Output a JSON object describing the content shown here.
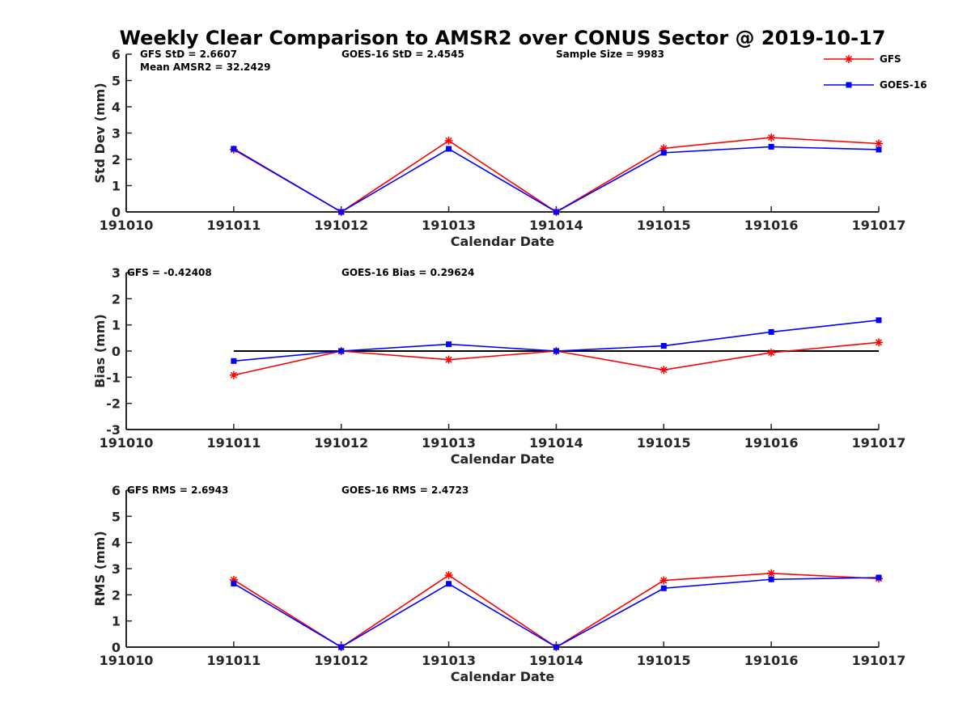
{
  "title": "Weekly Clear Comparison to AMSR2 over CONUS Sector @ 2019-10-17",
  "legend": [
    {
      "label": "GFS",
      "color": "#ff0000",
      "marker": "star"
    },
    {
      "label": "GOES-16",
      "color": "#0000ff",
      "marker": "square"
    }
  ],
  "chart_data": [
    {
      "type": "line",
      "ylabel": "Std Dev (mm)",
      "xlabel": "Calendar Date",
      "x_ticks": [
        "191010",
        "191011",
        "191012",
        "191013",
        "191014",
        "191015",
        "191016",
        "191017"
      ],
      "x": [
        "191011",
        "191012",
        "191013",
        "191014",
        "191015",
        "191016",
        "191017"
      ],
      "ylim": [
        0,
        6
      ],
      "y_ticks": [
        "0",
        "1",
        "2",
        "3",
        "4",
        "5",
        "6"
      ],
      "series": [
        {
          "name": "GFS",
          "color": "#ff0000",
          "marker": "star",
          "values": [
            2.37,
            0.0,
            2.71,
            0.0,
            2.42,
            2.83,
            2.6
          ]
        },
        {
          "name": "GOES-16",
          "color": "#0000ff",
          "marker": "square",
          "values": [
            2.4,
            0.0,
            2.4,
            0.0,
            2.25,
            2.48,
            2.37
          ]
        }
      ],
      "annotations": [
        "GFS StD = 2.6607",
        "Mean AMSR2 = 32.2429",
        "GOES-16 StD = 2.4545",
        "Sample Size = 9983"
      ]
    },
    {
      "type": "line",
      "ylabel": "Bias (mm)",
      "xlabel": "Calendar Date",
      "x_ticks": [
        "191010",
        "191011",
        "191012",
        "191013",
        "191014",
        "191015",
        "191016",
        "191017"
      ],
      "x": [
        "191011",
        "191012",
        "191013",
        "191014",
        "191015",
        "191016",
        "191017"
      ],
      "ylim": [
        -3,
        3
      ],
      "y_ticks": [
        "-3",
        "-2",
        "-1",
        "0",
        "1",
        "2",
        "3"
      ],
      "reference_line": 0,
      "series": [
        {
          "name": "GFS",
          "color": "#ff0000",
          "marker": "star",
          "values": [
            -0.92,
            0.0,
            -0.33,
            0.0,
            -0.72,
            -0.06,
            0.33
          ]
        },
        {
          "name": "GOES-16",
          "color": "#0000ff",
          "marker": "square",
          "values": [
            -0.38,
            0.0,
            0.26,
            0.0,
            0.2,
            0.73,
            1.18
          ]
        }
      ],
      "annotations": [
        "GFS = -0.42408",
        "GOES-16 Bias  = 0.29624"
      ]
    },
    {
      "type": "line",
      "ylabel": "RMS (mm)",
      "xlabel": "Calendar Date",
      "x_ticks": [
        "191010",
        "191011",
        "191012",
        "191013",
        "191014",
        "191015",
        "191016",
        "191017"
      ],
      "x": [
        "191011",
        "191012",
        "191013",
        "191014",
        "191015",
        "191016",
        "191017"
      ],
      "ylim": [
        0,
        6
      ],
      "y_ticks": [
        "0",
        "1",
        "2",
        "3",
        "4",
        "5",
        "6"
      ],
      "series": [
        {
          "name": "GFS",
          "color": "#ff0000",
          "marker": "star",
          "values": [
            2.57,
            0.0,
            2.75,
            0.0,
            2.55,
            2.82,
            2.62
          ]
        },
        {
          "name": "GOES-16",
          "color": "#0000ff",
          "marker": "square",
          "values": [
            2.43,
            0.0,
            2.42,
            0.0,
            2.25,
            2.59,
            2.66
          ]
        }
      ],
      "annotations": [
        "GFS RMS = 2.6943",
        "GOES-16 RMS = 2.4723"
      ]
    }
  ]
}
